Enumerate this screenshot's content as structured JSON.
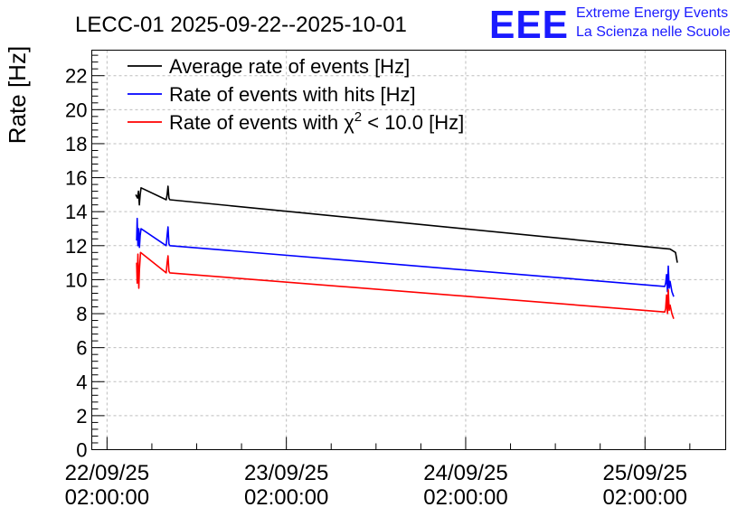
{
  "header": {
    "title": "LECC-01 2025-09-22--2025-10-01",
    "logo_text": "EEE",
    "brand_line1": "Extreme Energy Events",
    "brand_line2": "La Scienza nelle Scuole"
  },
  "colors": {
    "brand": "#1a1aff",
    "series_black": "#000000",
    "series_blue": "#0000ff",
    "series_red": "#ff0000"
  },
  "chart_data": {
    "type": "line",
    "title": "LECC-01 2025-09-22--2025-10-01",
    "ylabel": "Rate [Hz]",
    "xlabel": "",
    "ylim": [
      0,
      23.5
    ],
    "yticks": [
      "0",
      "2",
      "4",
      "6",
      "8",
      "10",
      "12",
      "14",
      "16",
      "18",
      "20",
      "22"
    ],
    "xlim": [
      -0.085,
      3.45
    ],
    "xticks": [
      {
        "value": 0,
        "line1": "22/09/25",
        "line2": "02:00:00"
      },
      {
        "value": 1,
        "line1": "23/09/25",
        "line2": "02:00:00"
      },
      {
        "value": 2,
        "line1": "24/09/25",
        "line2": "02:00:00"
      },
      {
        "value": 3,
        "line1": "25/09/25",
        "line2": "02:00:00"
      }
    ],
    "x_units": "days since 22/09/25 02:00:00",
    "grid": true,
    "legend_position": "top-left",
    "series": [
      {
        "name": "Average rate of events [Hz]",
        "label_parts": [
          "Average rate of events [Hz]"
        ],
        "color": "#000000",
        "points": [
          [
            0.16,
            15.0
          ],
          [
            0.17,
            14.8
          ],
          [
            0.175,
            15.2
          ],
          [
            0.18,
            14.4
          ],
          [
            0.185,
            15.0
          ],
          [
            0.19,
            15.4
          ],
          [
            0.33,
            14.7
          ],
          [
            0.335,
            15.0
          ],
          [
            0.34,
            15.5
          ],
          [
            0.345,
            14.8
          ],
          [
            0.35,
            14.7
          ],
          [
            3.14,
            11.8
          ],
          [
            3.17,
            11.6
          ],
          [
            3.18,
            11.0
          ]
        ]
      },
      {
        "name": "Rate of events with hits [Hz]",
        "label_parts": [
          "Rate of events with hits [Hz]"
        ],
        "color": "#0000ff",
        "points": [
          [
            0.165,
            12.3
          ],
          [
            0.168,
            13.6
          ],
          [
            0.172,
            12.0
          ],
          [
            0.177,
            13.0
          ],
          [
            0.181,
            11.9
          ],
          [
            0.185,
            12.6
          ],
          [
            0.19,
            13.0
          ],
          [
            0.33,
            12.0
          ],
          [
            0.335,
            12.6
          ],
          [
            0.34,
            13.1
          ],
          [
            0.345,
            12.1
          ],
          [
            0.35,
            12.0
          ],
          [
            3.11,
            9.6
          ],
          [
            3.115,
            9.8
          ],
          [
            3.12,
            10.3
          ],
          [
            3.125,
            9.3
          ],
          [
            3.13,
            10.8
          ],
          [
            3.135,
            9.5
          ],
          [
            3.14,
            9.9
          ],
          [
            3.15,
            9.3
          ],
          [
            3.16,
            9.0
          ]
        ]
      },
      {
        "name": "Rate of events with χ² < 10.0 [Hz]",
        "label_parts": [
          "Rate of events with ",
          "χ",
          "2",
          " < 10.0 [Hz]"
        ],
        "color": "#ff0000",
        "points": [
          [
            0.165,
            11.0
          ],
          [
            0.168,
            9.8
          ],
          [
            0.172,
            11.5
          ],
          [
            0.177,
            9.5
          ],
          [
            0.181,
            10.6
          ],
          [
            0.187,
            11.6
          ],
          [
            0.33,
            10.4
          ],
          [
            0.335,
            11.0
          ],
          [
            0.34,
            11.4
          ],
          [
            0.345,
            10.5
          ],
          [
            0.35,
            10.4
          ],
          [
            3.11,
            8.1
          ],
          [
            3.115,
            8.3
          ],
          [
            3.12,
            9.1
          ],
          [
            3.125,
            8.0
          ],
          [
            3.13,
            9.4
          ],
          [
            3.135,
            8.2
          ],
          [
            3.14,
            8.5
          ],
          [
            3.15,
            8.0
          ],
          [
            3.16,
            7.7
          ]
        ]
      }
    ]
  }
}
